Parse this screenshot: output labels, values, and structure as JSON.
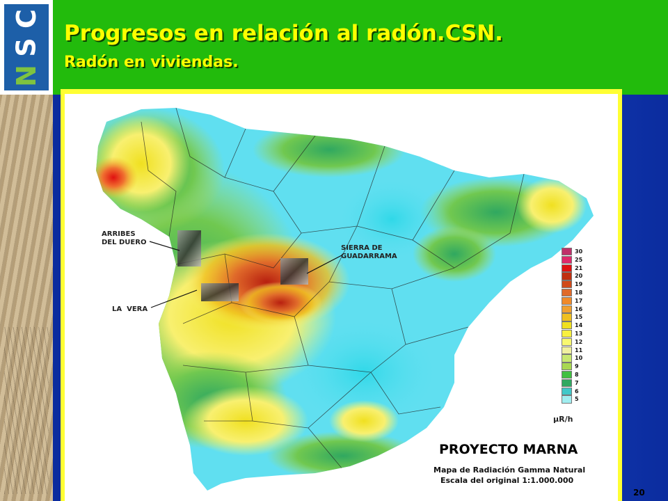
{
  "slide": {
    "title": "Progresos en relación al radón.CSN.",
    "subtitle": "Radón en viviendas.",
    "page_number": "20",
    "colors": {
      "header_green": "#22bb0c",
      "title_yellow": "#ffff00",
      "frame_yellow": "#ffff33",
      "background_blue": "#1a46c8"
    }
  },
  "logo": {
    "text_parts": [
      "C",
      "S",
      "N"
    ],
    "icon": "csn-logo"
  },
  "map": {
    "annotations": [
      {
        "id": "arribes",
        "text": "ARRIBES\nDEL DUERO"
      },
      {
        "id": "sierra",
        "text": "SIERRA DE\nGUADARRAMA"
      },
      {
        "id": "vera",
        "text": "LA  VERA"
      }
    ],
    "legend": {
      "values": [
        "30",
        "25",
        "21",
        "20",
        "19",
        "18",
        "17",
        "16",
        "15",
        "14",
        "13",
        "12",
        "11",
        "10",
        "9",
        "8",
        "7",
        "6",
        "5"
      ],
      "colors": [
        "#c0306a",
        "#e0286a",
        "#e01010",
        "#c03010",
        "#d04a1a",
        "#e06a2a",
        "#f08a2a",
        "#f0a030",
        "#f0c020",
        "#f0e020",
        "#f8f040",
        "#f8f870",
        "#f0f0a0",
        "#c8e870",
        "#a8d850",
        "#40c040",
        "#30a860",
        "#40c8c8",
        "#a0eef0"
      ],
      "unit": "μR/h"
    },
    "project_title": "PROYECTO MARNA",
    "caption_line1": "Mapa de Radiación Gamma Natural",
    "caption_line2": "Escala del original 1:1.000.000"
  }
}
